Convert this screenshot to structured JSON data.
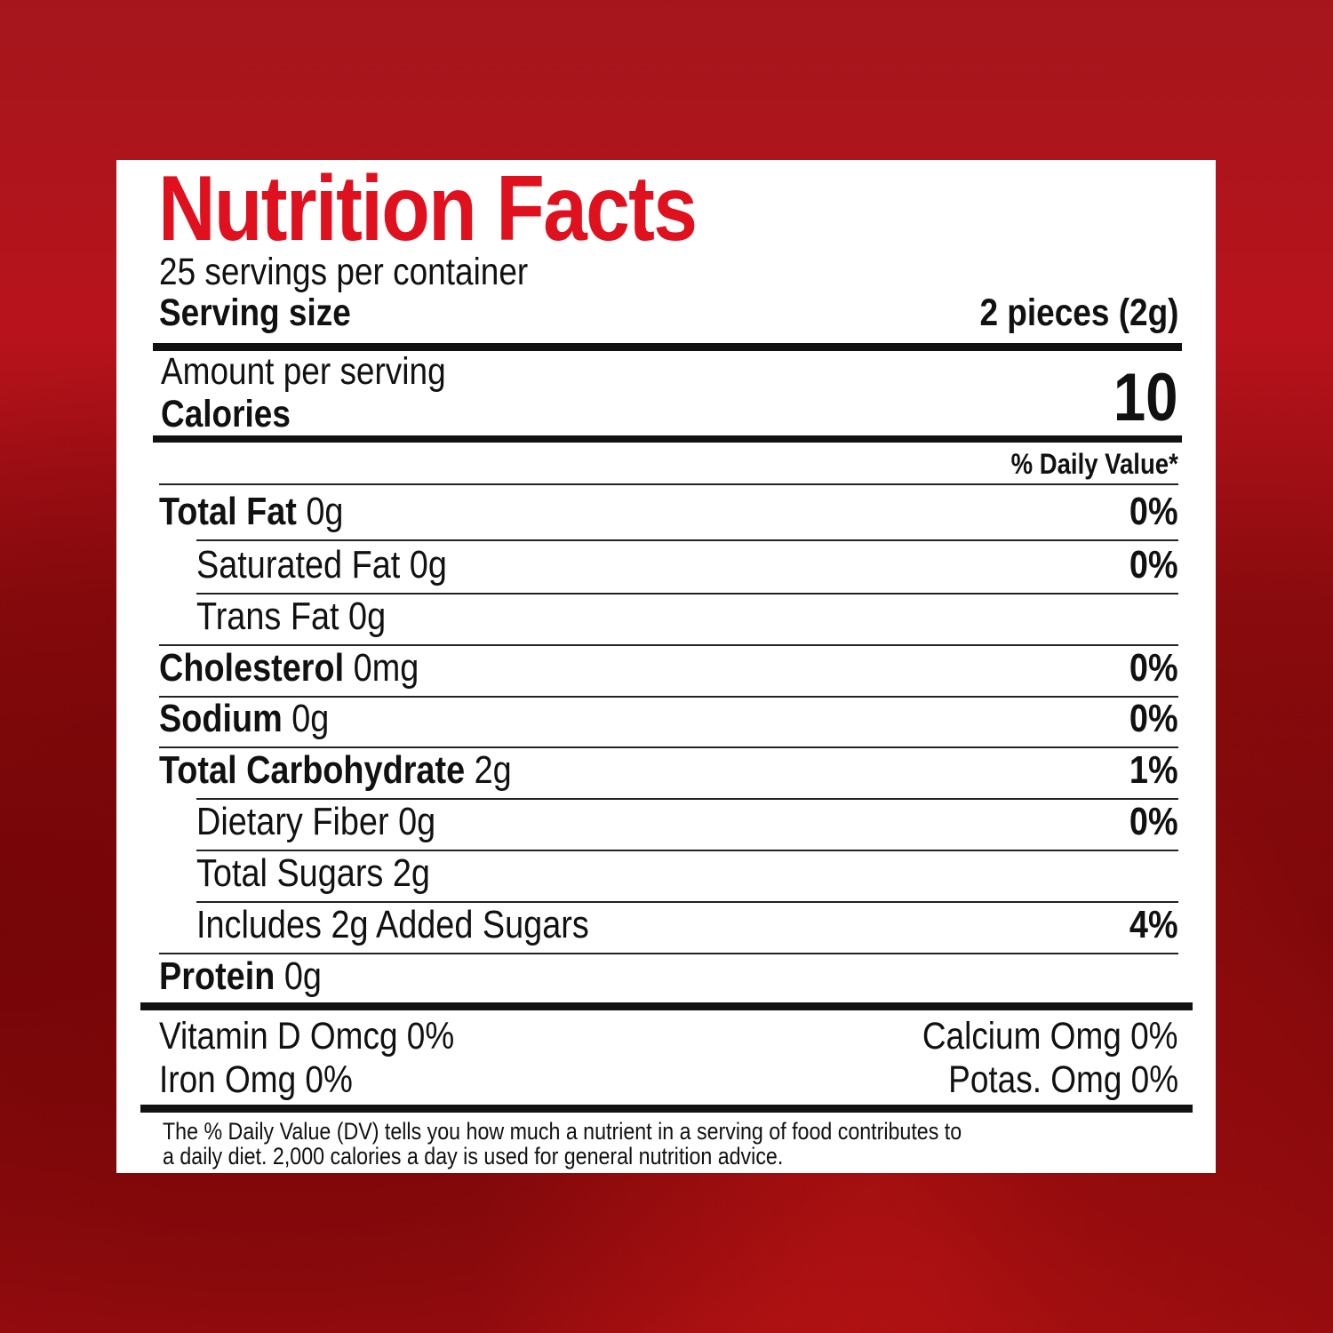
{
  "label": {
    "title": "Nutrition Facts",
    "servings_per_container": "25 servings per container",
    "serving_size_label": "Serving size",
    "serving_size_value": "2 pieces (2g)",
    "amount_per_serving": "Amount per serving",
    "calories_label": "Calories",
    "calories_value": "10",
    "daily_value_header": "% Daily Value*",
    "nutrients": [
      {
        "name": "Total Fat",
        "amount": "0g",
        "dv": "0%",
        "bold": true,
        "indent": false
      },
      {
        "name": "Saturated Fat",
        "amount": "0g",
        "dv": "0%",
        "bold": false,
        "indent": true
      },
      {
        "name": "Trans Fat",
        "amount": "0g",
        "dv": "",
        "bold": false,
        "indent": true
      },
      {
        "name": "Cholesterol",
        "amount": "0mg",
        "dv": "0%",
        "bold": true,
        "indent": false
      },
      {
        "name": "Sodium",
        "amount": "0g",
        "dv": "0%",
        "bold": true,
        "indent": false
      },
      {
        "name": "Total Carbohydrate",
        "amount": "2g",
        "dv": "1%",
        "bold": true,
        "indent": false
      },
      {
        "name": "Dietary Fiber",
        "amount": "0g",
        "dv": "0%",
        "bold": false,
        "indent": true
      },
      {
        "name": "Total Sugars",
        "amount": "2g",
        "dv": "",
        "bold": false,
        "indent": true
      },
      {
        "name": "Includes 2g Added Sugars",
        "amount": "",
        "dv": "4%",
        "bold": false,
        "indent": true
      },
      {
        "name": "Protein",
        "amount": "0g",
        "dv": "",
        "bold": true,
        "indent": false
      }
    ],
    "vitamins": {
      "vitamin_d": "Vitamin D Omcg 0%",
      "calcium": "Calcium Omg 0%",
      "iron": "Iron Omg 0%",
      "potassium": "Potas. Omg 0%"
    },
    "footnote_line1": "The % Daily Value (DV) tells you how much a nutrient in a serving of food contributes to",
    "footnote_line2": "a daily diet. 2,000 calories a day is used for general nutrition advice."
  },
  "colors": {
    "title": "#e0111f",
    "background": "#a5161c",
    "panel": "#ffffff"
  }
}
